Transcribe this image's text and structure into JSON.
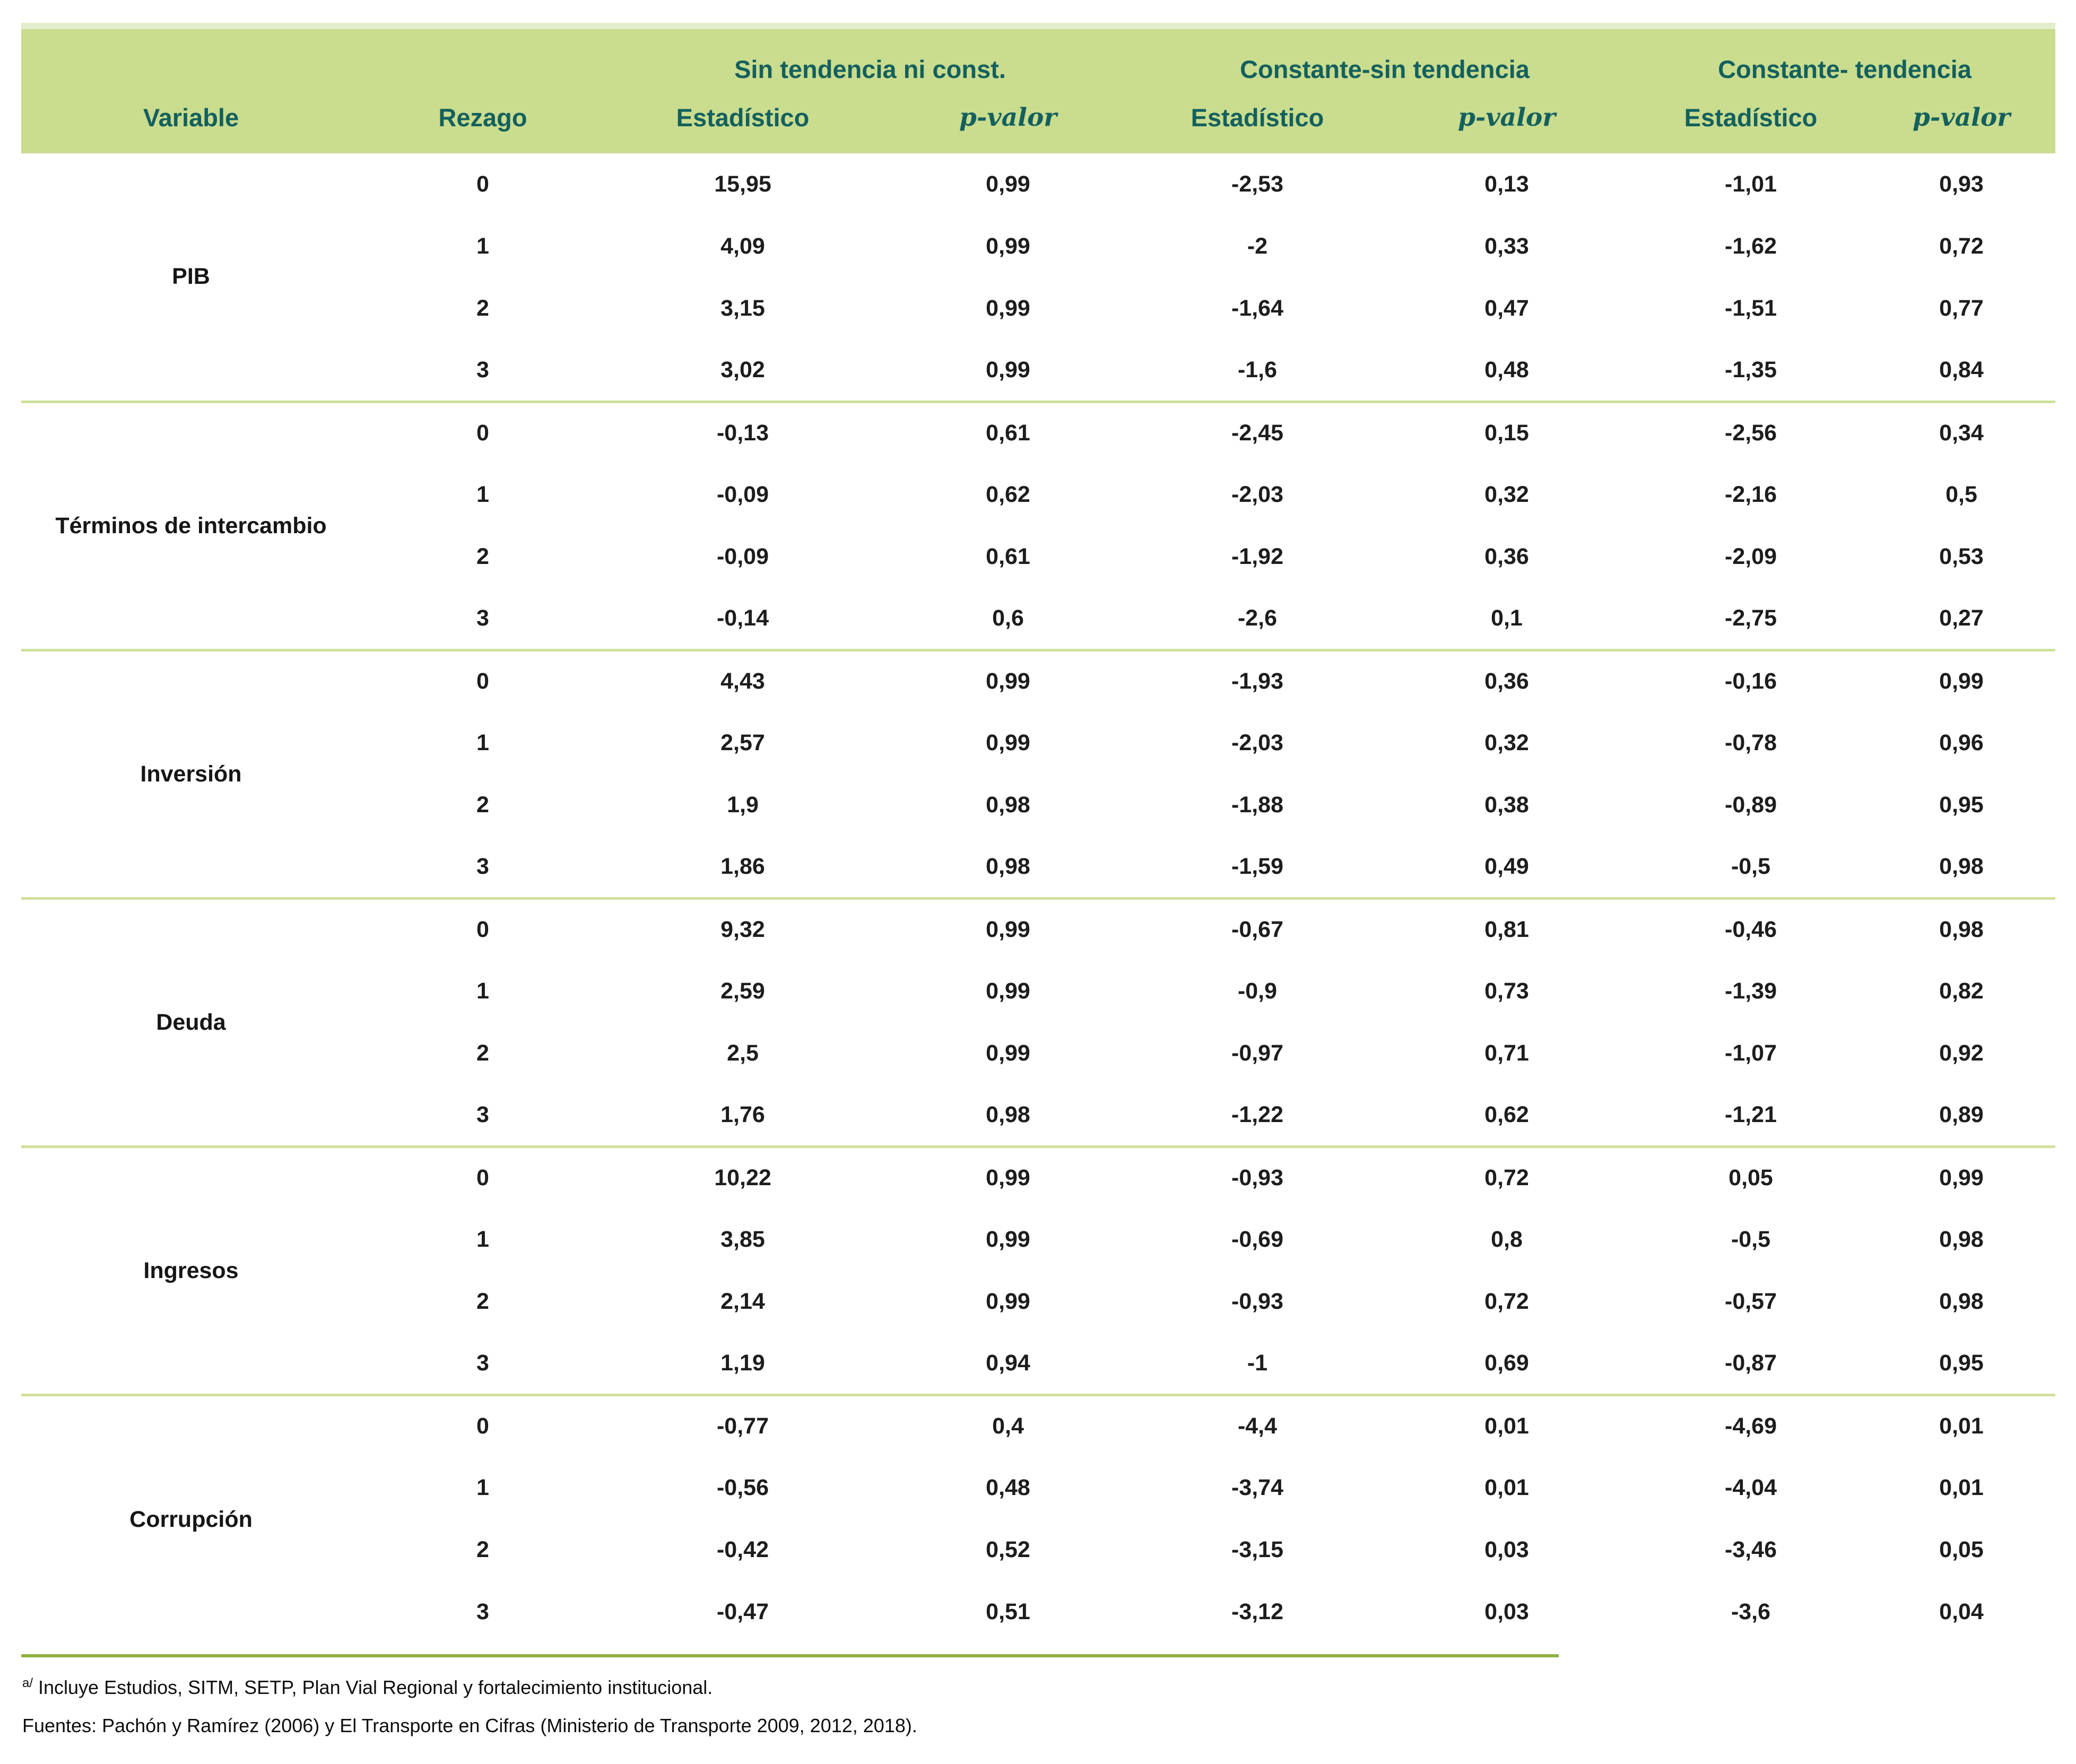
{
  "table": {
    "col_groups": [
      "Sin tendencia ni const.",
      "Constante-sin tendencia",
      "Constante- tendencia"
    ],
    "col_headers": {
      "variable": "Variable",
      "rezago": "Rezago",
      "estadistico": "Estadístico",
      "pvalor": "p-valor"
    },
    "groups": [
      {
        "variable": "PIB",
        "rows": [
          {
            "rezago": "0",
            "c": [
              "15,95",
              "0,99",
              "-2,53",
              "0,13",
              "-1,01",
              "0,93"
            ]
          },
          {
            "rezago": "1",
            "c": [
              "4,09",
              "0,99",
              "-2",
              "0,33",
              "-1,62",
              "0,72"
            ]
          },
          {
            "rezago": "2",
            "c": [
              "3,15",
              "0,99",
              "-1,64",
              "0,47",
              "-1,51",
              "0,77"
            ]
          },
          {
            "rezago": "3",
            "c": [
              "3,02",
              "0,99",
              "-1,6",
              "0,48",
              "-1,35",
              "0,84"
            ]
          }
        ]
      },
      {
        "variable": "Términos de intercambio",
        "rows": [
          {
            "rezago": "0",
            "c": [
              "-0,13",
              "0,61",
              "-2,45",
              "0,15",
              "-2,56",
              "0,34"
            ]
          },
          {
            "rezago": "1",
            "c": [
              "-0,09",
              "0,62",
              "-2,03",
              "0,32",
              "-2,16",
              "0,5"
            ]
          },
          {
            "rezago": "2",
            "c": [
              "-0,09",
              "0,61",
              "-1,92",
              "0,36",
              "-2,09",
              "0,53"
            ]
          },
          {
            "rezago": "3",
            "c": [
              "-0,14",
              "0,6",
              "-2,6",
              "0,1",
              "-2,75",
              "0,27"
            ]
          }
        ]
      },
      {
        "variable": "Inversión",
        "rows": [
          {
            "rezago": "0",
            "c": [
              "4,43",
              "0,99",
              "-1,93",
              "0,36",
              "-0,16",
              "0,99"
            ]
          },
          {
            "rezago": "1",
            "c": [
              "2,57",
              "0,99",
              "-2,03",
              "0,32",
              "-0,78",
              "0,96"
            ]
          },
          {
            "rezago": "2",
            "c": [
              "1,9",
              "0,98",
              "-1,88",
              "0,38",
              "-0,89",
              "0,95"
            ]
          },
          {
            "rezago": "3",
            "c": [
              "1,86",
              "0,98",
              "-1,59",
              "0,49",
              "-0,5",
              "0,98"
            ]
          }
        ]
      },
      {
        "variable": "Deuda",
        "rows": [
          {
            "rezago": "0",
            "c": [
              "9,32",
              "0,99",
              "-0,67",
              "0,81",
              "-0,46",
              "0,98"
            ]
          },
          {
            "rezago": "1",
            "c": [
              "2,59",
              "0,99",
              "-0,9",
              "0,73",
              "-1,39",
              "0,82"
            ]
          },
          {
            "rezago": "2",
            "c": [
              "2,5",
              "0,99",
              "-0,97",
              "0,71",
              "-1,07",
              "0,92"
            ]
          },
          {
            "rezago": "3",
            "c": [
              "1,76",
              "0,98",
              "-1,22",
              "0,62",
              "-1,21",
              "0,89"
            ]
          }
        ]
      },
      {
        "variable": "Ingresos",
        "rows": [
          {
            "rezago": "0",
            "c": [
              "10,22",
              "0,99",
              "-0,93",
              "0,72",
              "0,05",
              "0,99"
            ]
          },
          {
            "rezago": "1",
            "c": [
              "3,85",
              "0,99",
              "-0,69",
              "0,8",
              "-0,5",
              "0,98"
            ]
          },
          {
            "rezago": "2",
            "c": [
              "2,14",
              "0,99",
              "-0,93",
              "0,72",
              "-0,57",
              "0,98"
            ]
          },
          {
            "rezago": "3",
            "c": [
              "1,19",
              "0,94",
              "-1",
              "0,69",
              "-0,87",
              "0,95"
            ]
          }
        ]
      },
      {
        "variable": "Corrupción",
        "rows": [
          {
            "rezago": "0",
            "c": [
              "-0,77",
              "0,4",
              "-4,4",
              "0,01",
              "-4,69",
              "0,01"
            ]
          },
          {
            "rezago": "1",
            "c": [
              "-0,56",
              "0,48",
              "-3,74",
              "0,01",
              "-4,04",
              "0,01"
            ]
          },
          {
            "rezago": "2",
            "c": [
              "-0,42",
              "0,52",
              "-3,15",
              "0,03",
              "-3,46",
              "0,05"
            ]
          },
          {
            "rezago": "3",
            "c": [
              "-0,47",
              "0,51",
              "-3,12",
              "0,03",
              "-3,6",
              "0,04"
            ]
          }
        ]
      }
    ]
  },
  "footnotes": {
    "note_marker": "a/",
    "note_text": " Incluye Estudios, SITM, SETP, Plan Vial Regional y fortalecimiento institucional.",
    "sources": "Fuentes: Pachón y Ramírez (2006) y El Transporte en Cifras (Ministerio de Transporte 2009, 2012, 2018)."
  },
  "colors": {
    "header_bg": "#cadc8e",
    "header_top_strip": "#e3edcb",
    "header_text": "#13605e",
    "group_separator": "#cfe09a",
    "bottom_rule": "#92b044",
    "body_text": "#1d1d1d"
  }
}
